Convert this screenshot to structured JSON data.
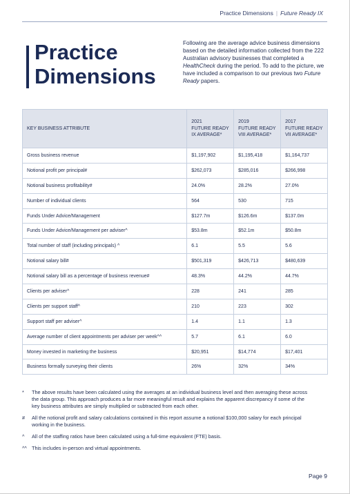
{
  "header": {
    "section": "Practice Dimensions",
    "publication": "Future Ready IX"
  },
  "title": [
    "Practice",
    "Dimensions"
  ],
  "intro": [
    "Following are the average advice business dimensions based on the detailed information collected from the 222 Australian advisory businesses that completed a ",
    "HealthCheck",
    " during the period. To add to the picture, we have included a comparison to our previous two ",
    "Future Ready",
    " papers."
  ],
  "table": {
    "columns": [
      [
        "KEY BUSINESS ATTRIBUTE"
      ],
      [
        "2021",
        "FUTURE READY",
        "IX AVERAGE*"
      ],
      [
        "2019",
        "FUTURE READY",
        "VIII AVERAGE*"
      ],
      [
        "2017",
        "FUTURE READY",
        "VII AVERAGE*"
      ]
    ],
    "rows": [
      [
        "Gross business revenue",
        "$1,197,902",
        "$1,195,418",
        "$1,164,737"
      ],
      [
        "Notional profit per principal#",
        "$262,073",
        "$285,016",
        "$266,998"
      ],
      [
        "Notional business profitability#",
        "24.0%",
        "28.2%",
        "27.0%"
      ],
      [
        "Number of individual clients",
        "564",
        "530",
        "715"
      ],
      [
        "Funds Under Advice/Management",
        "$127.7m",
        "$126.6m",
        "$137.0m"
      ],
      [
        "Funds Under Advice/Management per adviser^",
        "$53.8m",
        "$52.1m",
        "$50.8m"
      ],
      [
        "Total number of staff (including principals) ^",
        "6.1",
        "5.5",
        "5.6"
      ],
      [
        "Notional salary bill#",
        "$501,319",
        "$426,713",
        "$480,639"
      ],
      [
        "Notional salary bill as a percentage of business revenue#",
        "48.3%",
        "44.2%",
        "44.7%"
      ],
      [
        "Clients per adviser^",
        "228",
        "241",
        "285"
      ],
      [
        "Clients per support staff^",
        "210",
        "223",
        "302"
      ],
      [
        "Support staff per adviser^",
        "1.4",
        "1.1",
        "1.3"
      ],
      [
        "Average number of client appointments per adviser per week^^",
        "5.7",
        "6.1",
        "6.0"
      ],
      [
        "Money invested in marketing the business",
        "$20,951",
        "$14,774",
        "$17,401"
      ],
      [
        "Business formally surveying their clients",
        "26%",
        "32%",
        "34%"
      ]
    ]
  },
  "footnotes": [
    {
      "mark": "*",
      "text": "The above results have been calculated using the averages at an individual business level and then averaging these across the data group. This approach produces a far more meaningful result and explains the apparent discrepancy if some of the key business attributes are simply multiplied or subtracted from each other."
    },
    {
      "mark": "#",
      "text": "All the notional profit and salary calculations contained in this report assume a notional $100,000 salary for each principal working in the business."
    },
    {
      "mark": "^",
      "text": "All of the staffing ratios have been calculated using a full-time equivalent (FTE) basis."
    },
    {
      "mark": "^^",
      "text": "This includes in-person and virtual appointments."
    }
  ],
  "page": "Page 9"
}
